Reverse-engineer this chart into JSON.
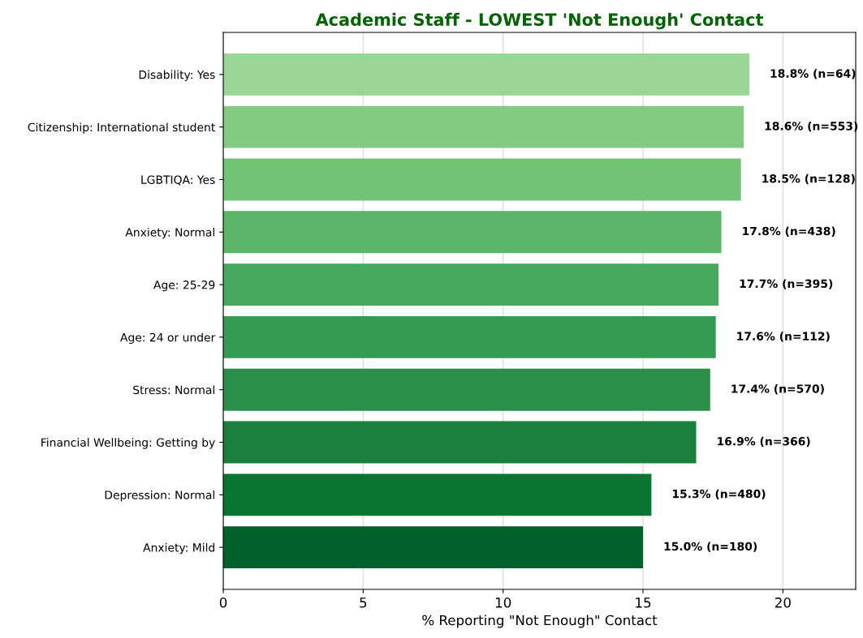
{
  "chart_data": {
    "type": "bar",
    "orientation": "horizontal",
    "title": "Academic Staff - LOWEST 'Not Enough' Contact",
    "xlabel": "% Reporting \"Not Enough\" Contact",
    "categories": [
      "Disability: Yes",
      "Citizenship: International student",
      "LGBTIQA: Yes",
      "Anxiety: Normal",
      "Age: 25-29",
      "Age: 24 or under",
      "Stress: Normal",
      "Financial Wellbeing: Getting by",
      "Depression: Normal",
      "Anxiety: Mild"
    ],
    "values": [
      18.8,
      18.6,
      18.5,
      17.8,
      17.7,
      17.6,
      17.4,
      16.9,
      15.3,
      15.0
    ],
    "value_labels": [
      "18.8% (n=64)",
      "18.6% (n=553)",
      "18.5% (n=128)",
      "17.8% (n=438)",
      "17.7% (n=395)",
      "17.6% (n=112)",
      "17.4% (n=570)",
      "16.9% (n=366)",
      "15.3% (n=480)",
      "15.0% (n=180)"
    ],
    "colors": [
      "#9ad595",
      "#84cb82",
      "#72c375",
      "#5cb66a",
      "#45aa5e",
      "#339c52",
      "#288e48",
      "#1a7f3c",
      "#0a7431",
      "#00622a"
    ],
    "xlim": [
      0,
      22.6
    ],
    "xticks": [
      0,
      5,
      10,
      15,
      20
    ],
    "grid": "x"
  }
}
